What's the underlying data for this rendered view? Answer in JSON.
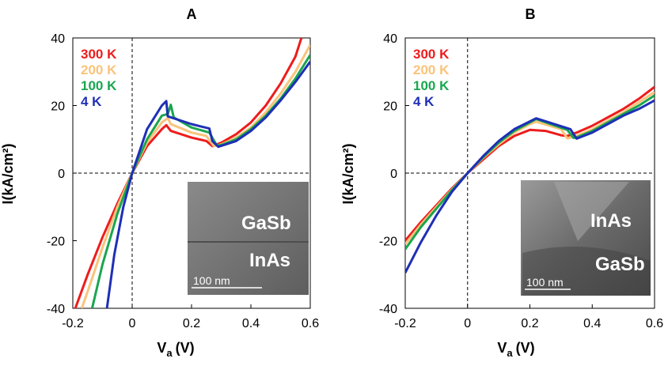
{
  "chart_data": [
    {
      "panel": "A",
      "type": "line",
      "title": "A",
      "xlabel": "V",
      "xlabel_sub": "a",
      "xlabel_unit": "(V)",
      "ylabel": "I(kA/cm²)",
      "xlim": [
        -0.2,
        0.6
      ],
      "ylim": [
        -40,
        40
      ],
      "xticks": [
        "-0.2",
        "0",
        "0.2",
        "0.4",
        "0.6"
      ],
      "yticks": [
        "-40",
        "-20",
        "0",
        "20",
        "40"
      ],
      "legend_position": "top-left",
      "series": [
        {
          "name": "300 K",
          "color": "#ee1c1c",
          "x": [
            -0.2,
            -0.15,
            -0.1,
            -0.05,
            0,
            0.05,
            0.1,
            0.115,
            0.13,
            0.2,
            0.25,
            0.27,
            0.3,
            0.35,
            0.4,
            0.45,
            0.5,
            0.55,
            0.57
          ],
          "y": [
            -42,
            -30,
            -19,
            -9,
            0,
            8,
            13,
            14.2,
            12.5,
            10.5,
            9.5,
            8.0,
            9.0,
            11.5,
            15,
            20,
            26.5,
            34.5,
            40
          ]
        },
        {
          "name": "200 K",
          "color": "#fac37a",
          "x": [
            -0.17,
            -0.15,
            -0.1,
            -0.05,
            0,
            0.05,
            0.1,
            0.12,
            0.13,
            0.2,
            0.25,
            0.275,
            0.3,
            0.35,
            0.4,
            0.45,
            0.5,
            0.55,
            0.6
          ],
          "y": [
            -40,
            -35,
            -22,
            -10,
            0,
            9,
            15,
            16.3,
            14.5,
            12,
            11,
            8.0,
            8.5,
            10.5,
            13.5,
            18,
            23.5,
            30,
            38
          ]
        },
        {
          "name": "100 K",
          "color": "#1aa64f",
          "x": [
            -0.135,
            -0.1,
            -0.05,
            0,
            0.05,
            0.1,
            0.12,
            0.13,
            0.14,
            0.2,
            0.26,
            0.285,
            0.3,
            0.35,
            0.4,
            0.45,
            0.5,
            0.55,
            0.6
          ],
          "y": [
            -40,
            -27,
            -12,
            0,
            10,
            17,
            17.5,
            20.2,
            16.5,
            13.5,
            12,
            8.2,
            8.3,
            10,
            13,
            17,
            22,
            28,
            35
          ]
        },
        {
          "name": "4 K",
          "color": "#1f2fb5",
          "x": [
            -0.085,
            -0.06,
            -0.03,
            0,
            0.05,
            0.1,
            0.115,
            0.12,
            0.2,
            0.26,
            0.27,
            0.29,
            0.35,
            0.4,
            0.45,
            0.5,
            0.55,
            0.6
          ],
          "y": [
            -40,
            -24,
            -10,
            0,
            13,
            20,
            21.3,
            16.8,
            14.5,
            13.2,
            9.5,
            7.8,
            9.5,
            12.5,
            16.5,
            21.5,
            27,
            33
          ]
        }
      ],
      "inset": {
        "labels": [
          "GaSb",
          "InAs"
        ],
        "scale_bar": "100 nm"
      }
    },
    {
      "panel": "B",
      "type": "line",
      "title": "B",
      "xlabel": "V",
      "xlabel_sub": "a",
      "xlabel_unit": "(V)",
      "ylabel": "I(kA/cm²)",
      "xlim": [
        -0.2,
        0.6
      ],
      "ylim": [
        -40,
        40
      ],
      "xticks": [
        "-0.2",
        "0",
        "0.2",
        "0.4",
        "0.6"
      ],
      "yticks": [
        "-40",
        "-20",
        "0",
        "20",
        "40"
      ],
      "legend_position": "top-left",
      "series": [
        {
          "name": "300 K",
          "color": "#ee1c1c",
          "x": [
            -0.2,
            -0.15,
            -0.1,
            -0.05,
            0,
            0.05,
            0.1,
            0.15,
            0.2,
            0.25,
            0.3,
            0.32,
            0.35,
            0.4,
            0.45,
            0.5,
            0.55,
            0.6
          ],
          "y": [
            -20,
            -14.5,
            -9.5,
            -4.5,
            0,
            4,
            8,
            11,
            12.8,
            12.5,
            11.2,
            11.0,
            12,
            14,
            16.5,
            19,
            22,
            25.5
          ]
        },
        {
          "name": "200 K",
          "color": "#fac37a",
          "x": [
            -0.2,
            -0.15,
            -0.1,
            -0.05,
            0,
            0.05,
            0.1,
            0.15,
            0.2,
            0.22,
            0.3,
            0.32,
            0.35,
            0.4,
            0.45,
            0.5,
            0.55,
            0.6
          ],
          "y": [
            -21,
            -15.2,
            -10,
            -4.8,
            0,
            4.5,
            8.5,
            12,
            14.5,
            15.2,
            13,
            10.3,
            11,
            13,
            15.5,
            18,
            21,
            24
          ]
        },
        {
          "name": "100 K",
          "color": "#1aa64f",
          "x": [
            -0.2,
            -0.15,
            -0.1,
            -0.05,
            0,
            0.05,
            0.1,
            0.15,
            0.2,
            0.22,
            0.32,
            0.34,
            0.35,
            0.4,
            0.45,
            0.5,
            0.55,
            0.6
          ],
          "y": [
            -22.5,
            -16,
            -10.5,
            -5,
            0,
            4.7,
            9,
            12.5,
            15,
            16,
            12.8,
            10.4,
            10.6,
            12.5,
            15,
            17.5,
            20,
            23
          ]
        },
        {
          "name": "4 K",
          "color": "#1f2fb5",
          "x": [
            -0.2,
            -0.15,
            -0.1,
            -0.05,
            0,
            0.05,
            0.1,
            0.15,
            0.2,
            0.22,
            0.33,
            0.35,
            0.4,
            0.45,
            0.5,
            0.55,
            0.6
          ],
          "y": [
            -29.5,
            -20.5,
            -12.5,
            -5.5,
            0,
            5,
            9.5,
            13,
            15.3,
            16.2,
            13,
            10.2,
            12,
            14.5,
            17,
            19,
            21.5
          ]
        }
      ],
      "inset": {
        "labels": [
          "InAs",
          "GaSb"
        ],
        "scale_bar": "100 nm"
      }
    }
  ]
}
